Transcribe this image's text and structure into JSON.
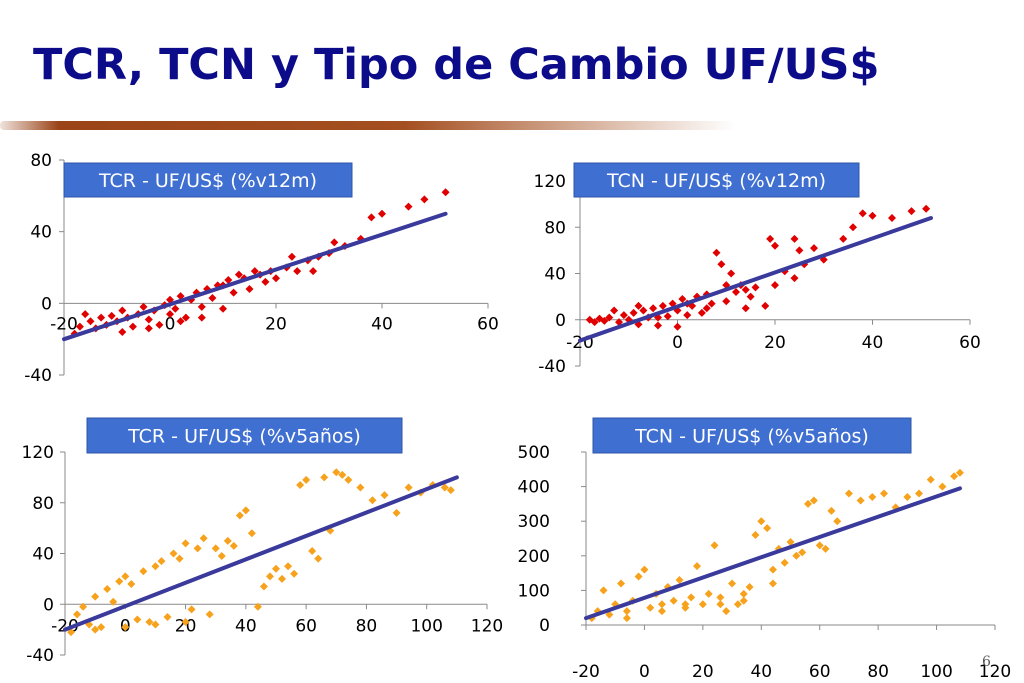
{
  "slide": {
    "title": "TCR, TCN y Tipo de Cambio UF/US$",
    "page_number": "6"
  },
  "colors": {
    "title": "#0c0c8a",
    "trend": "#3a3a9c",
    "label_bg": "#3f6fd0",
    "red_points": "#e00000",
    "orange_points": "#f7a21c"
  },
  "chart_data": [
    {
      "id": "tcr12",
      "type": "scatter",
      "title": "TCR - UF/US$ (%v12m)",
      "color": "#e00000",
      "xticks": [
        -20,
        0,
        20,
        40,
        60
      ],
      "yticks": [
        -40,
        0,
        40,
        80
      ],
      "xlim": [
        -20,
        60
      ],
      "ylim": [
        -40,
        80
      ],
      "trend": {
        "x1": -20,
        "y1": -20,
        "x2": 52,
        "y2": 50
      },
      "points": [
        [
          -18,
          -17
        ],
        [
          -17,
          -13
        ],
        [
          -15,
          -10
        ],
        [
          -14,
          -14
        ],
        [
          -13,
          -8
        ],
        [
          -12,
          -12
        ],
        [
          -11,
          -7
        ],
        [
          -10,
          -10
        ],
        [
          -9,
          -4
        ],
        [
          -8,
          -8
        ],
        [
          -7,
          -13
        ],
        [
          -6,
          -6
        ],
        [
          -5,
          -2
        ],
        [
          -4,
          -9
        ],
        [
          -3,
          -4
        ],
        [
          -2,
          -12
        ],
        [
          -1,
          -1
        ],
        [
          0,
          -6
        ],
        [
          0,
          2
        ],
        [
          1,
          -3
        ],
        [
          2,
          4
        ],
        [
          3,
          -8
        ],
        [
          4,
          2
        ],
        [
          5,
          6
        ],
        [
          6,
          -2
        ],
        [
          7,
          8
        ],
        [
          8,
          3
        ],
        [
          9,
          10
        ],
        [
          10,
          -3
        ],
        [
          11,
          13
        ],
        [
          12,
          6
        ],
        [
          13,
          16
        ],
        [
          15,
          8
        ],
        [
          16,
          18
        ],
        [
          18,
          12
        ],
        [
          19,
          18
        ],
        [
          20,
          14
        ],
        [
          22,
          20
        ],
        [
          24,
          18
        ],
        [
          26,
          24
        ],
        [
          27,
          18
        ],
        [
          28,
          26
        ],
        [
          30,
          28
        ],
        [
          33,
          32
        ],
        [
          36,
          36
        ],
        [
          38,
          48
        ],
        [
          40,
          50
        ],
        [
          45,
          54
        ],
        [
          48,
          58
        ],
        [
          52,
          62
        ],
        [
          -16,
          -6
        ],
        [
          -9,
          -16
        ],
        [
          -4,
          -14
        ],
        [
          2,
          -10
        ],
        [
          6,
          -8
        ],
        [
          10,
          10
        ],
        [
          14,
          14
        ],
        [
          17,
          16
        ],
        [
          23,
          26
        ],
        [
          31,
          34
        ]
      ]
    },
    {
      "id": "tcn12",
      "type": "scatter",
      "title": "TCN - UF/US$ (%v12m)",
      "color": "#e00000",
      "xticks": [
        -20,
        0,
        20,
        40,
        60
      ],
      "yticks": [
        -40,
        0,
        40,
        80,
        120
      ],
      "xlim": [
        -20,
        60
      ],
      "ylim": [
        -40,
        120
      ],
      "trend": {
        "x1": -20,
        "y1": -18,
        "x2": 52,
        "y2": 88
      },
      "points": [
        [
          -18,
          0
        ],
        [
          -17,
          -2
        ],
        [
          -16,
          1
        ],
        [
          -15,
          -1
        ],
        [
          -14,
          2
        ],
        [
          -12,
          -2
        ],
        [
          -11,
          4
        ],
        [
          -10,
          0
        ],
        [
          -9,
          6
        ],
        [
          -8,
          -4
        ],
        [
          -7,
          8
        ],
        [
          -6,
          2
        ],
        [
          -5,
          10
        ],
        [
          -4,
          -5
        ],
        [
          -3,
          12
        ],
        [
          -2,
          3
        ],
        [
          -1,
          14
        ],
        [
          0,
          -6
        ],
        [
          0,
          8
        ],
        [
          1,
          18
        ],
        [
          2,
          4
        ],
        [
          3,
          12
        ],
        [
          4,
          20
        ],
        [
          5,
          6
        ],
        [
          6,
          22
        ],
        [
          7,
          14
        ],
        [
          8,
          58
        ],
        [
          9,
          48
        ],
        [
          10,
          16
        ],
        [
          11,
          40
        ],
        [
          12,
          24
        ],
        [
          13,
          30
        ],
        [
          14,
          10
        ],
        [
          15,
          20
        ],
        [
          16,
          28
        ],
        [
          18,
          12
        ],
        [
          19,
          70
        ],
        [
          20,
          64
        ],
        [
          22,
          42
        ],
        [
          24,
          36
        ],
        [
          25,
          60
        ],
        [
          26,
          48
        ],
        [
          28,
          62
        ],
        [
          30,
          52
        ],
        [
          34,
          70
        ],
        [
          36,
          80
        ],
        [
          38,
          92
        ],
        [
          40,
          90
        ],
        [
          44,
          88
        ],
        [
          48,
          94
        ],
        [
          51,
          96
        ],
        [
          -13,
          8
        ],
        [
          -8,
          12
        ],
        [
          -4,
          2
        ],
        [
          2,
          14
        ],
        [
          6,
          10
        ],
        [
          10,
          30
        ],
        [
          14,
          26
        ],
        [
          20,
          30
        ],
        [
          24,
          70
        ]
      ]
    },
    {
      "id": "tcr5",
      "type": "scatter",
      "title": "TCR - UF/US$ (%v5años)",
      "color": "#f7a21c",
      "xticks": [
        -20,
        0,
        20,
        40,
        60,
        80,
        100,
        120
      ],
      "yticks": [
        -40,
        0,
        40,
        80,
        120
      ],
      "xlim": [
        -20,
        120
      ],
      "ylim": [
        -40,
        120
      ],
      "trend": {
        "x1": -20,
        "y1": -20,
        "x2": 110,
        "y2": 100
      },
      "points": [
        [
          -18,
          -22
        ],
        [
          -16,
          -8
        ],
        [
          -14,
          -2
        ],
        [
          -12,
          -16
        ],
        [
          -10,
          6
        ],
        [
          -8,
          -18
        ],
        [
          -6,
          12
        ],
        [
          -4,
          2
        ],
        [
          -2,
          18
        ],
        [
          0,
          22
        ],
        [
          2,
          16
        ],
        [
          4,
          -12
        ],
        [
          6,
          26
        ],
        [
          8,
          -14
        ],
        [
          10,
          30
        ],
        [
          12,
          34
        ],
        [
          14,
          -10
        ],
        [
          16,
          40
        ],
        [
          18,
          36
        ],
        [
          20,
          48
        ],
        [
          22,
          -4
        ],
        [
          24,
          44
        ],
        [
          26,
          52
        ],
        [
          28,
          -8
        ],
        [
          30,
          44
        ],
        [
          32,
          38
        ],
        [
          34,
          50
        ],
        [
          36,
          46
        ],
        [
          38,
          70
        ],
        [
          40,
          74
        ],
        [
          42,
          56
        ],
        [
          44,
          -2
        ],
        [
          46,
          14
        ],
        [
          48,
          22
        ],
        [
          50,
          28
        ],
        [
          52,
          20
        ],
        [
          54,
          30
        ],
        [
          56,
          24
        ],
        [
          58,
          94
        ],
        [
          60,
          98
        ],
        [
          62,
          42
        ],
        [
          64,
          36
        ],
        [
          66,
          100
        ],
        [
          68,
          58
        ],
        [
          70,
          104
        ],
        [
          72,
          102
        ],
        [
          74,
          98
        ],
        [
          78,
          92
        ],
        [
          82,
          82
        ],
        [
          86,
          86
        ],
        [
          90,
          72
        ],
        [
          94,
          92
        ],
        [
          98,
          88
        ],
        [
          102,
          94
        ],
        [
          106,
          92
        ],
        [
          108,
          90
        ],
        [
          -10,
          -20
        ],
        [
          0,
          -18
        ],
        [
          10,
          -16
        ],
        [
          20,
          -14
        ]
      ]
    },
    {
      "id": "tcn5",
      "type": "scatter",
      "title": "TCN - UF/US$ (%v5años)",
      "color": "#f7a21c",
      "xticks": [
        -20,
        0,
        20,
        40,
        60,
        80,
        100,
        120
      ],
      "yticks": [
        0,
        100,
        200,
        300,
        400,
        500
      ],
      "xlim": [
        -20,
        120
      ],
      "ylim": [
        0,
        500
      ],
      "trend": {
        "x1": -20,
        "y1": 20,
        "x2": 108,
        "y2": 395
      },
      "points": [
        [
          -18,
          20
        ],
        [
          -16,
          40
        ],
        [
          -14,
          100
        ],
        [
          -12,
          30
        ],
        [
          -10,
          60
        ],
        [
          -8,
          120
        ],
        [
          -6,
          40
        ],
        [
          -4,
          70
        ],
        [
          -2,
          140
        ],
        [
          0,
          160
        ],
        [
          2,
          50
        ],
        [
          4,
          90
        ],
        [
          6,
          60
        ],
        [
          8,
          110
        ],
        [
          10,
          70
        ],
        [
          12,
          130
        ],
        [
          14,
          50
        ],
        [
          16,
          80
        ],
        [
          18,
          170
        ],
        [
          20,
          60
        ],
        [
          22,
          90
        ],
        [
          24,
          230
        ],
        [
          26,
          80
        ],
        [
          28,
          40
        ],
        [
          30,
          120
        ],
        [
          32,
          60
        ],
        [
          34,
          90
        ],
        [
          36,
          110
        ],
        [
          38,
          260
        ],
        [
          40,
          300
        ],
        [
          42,
          280
        ],
        [
          44,
          160
        ],
        [
          46,
          220
        ],
        [
          48,
          180
        ],
        [
          50,
          240
        ],
        [
          52,
          200
        ],
        [
          54,
          210
        ],
        [
          56,
          350
        ],
        [
          58,
          360
        ],
        [
          60,
          230
        ],
        [
          62,
          220
        ],
        [
          64,
          330
        ],
        [
          66,
          300
        ],
        [
          70,
          380
        ],
        [
          74,
          360
        ],
        [
          78,
          370
        ],
        [
          82,
          380
        ],
        [
          86,
          340
        ],
        [
          90,
          370
        ],
        [
          94,
          380
        ],
        [
          98,
          420
        ],
        [
          102,
          400
        ],
        [
          106,
          430
        ],
        [
          108,
          440
        ],
        [
          -6,
          20
        ],
        [
          6,
          40
        ],
        [
          14,
          60
        ],
        [
          26,
          60
        ],
        [
          34,
          70
        ],
        [
          44,
          120
        ]
      ]
    }
  ]
}
